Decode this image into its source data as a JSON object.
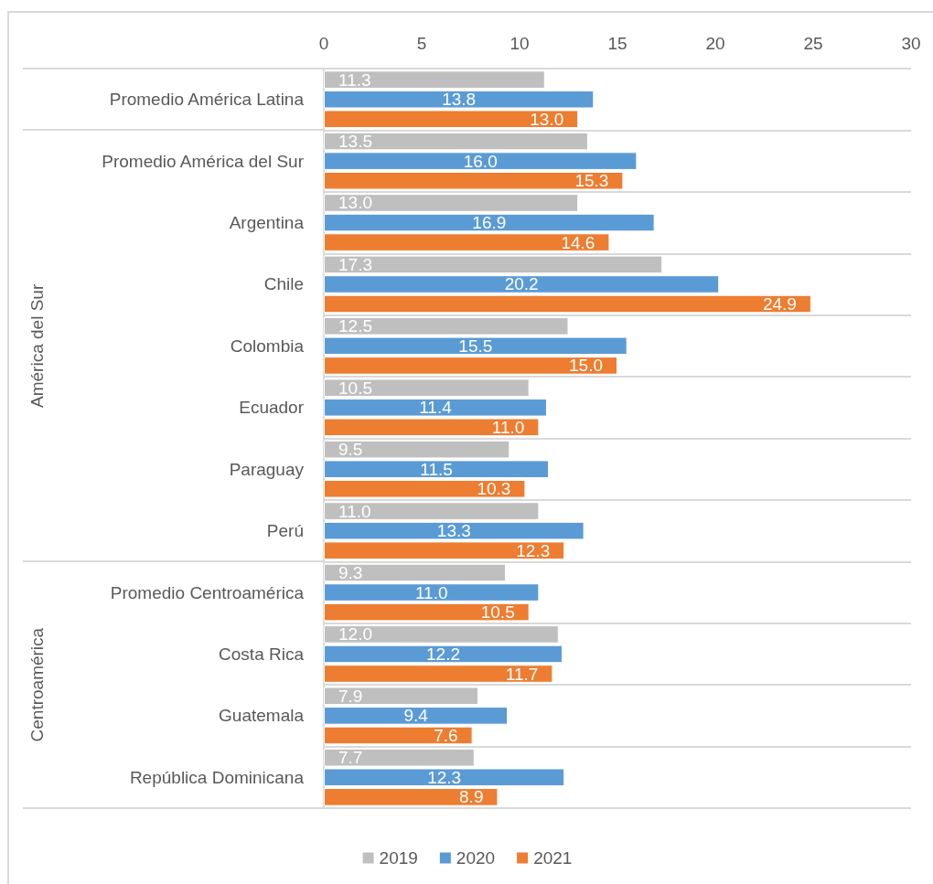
{
  "chart_data": {
    "type": "bar",
    "orientation": "horizontal",
    "categories": [
      "Promedio América Latina",
      "Promedio América del Sur",
      "Argentina",
      "Chile",
      "Colombia",
      "Ecuador",
      "Paraguay",
      "Perú",
      "Promedio Centroamérica",
      "Costa Rica",
      "Guatemala",
      "República Dominicana"
    ],
    "series": [
      {
        "name": "2019",
        "color": "#bfbfbf",
        "values": [
          11.3,
          13.5,
          13.0,
          17.3,
          12.5,
          10.5,
          9.5,
          11.0,
          9.3,
          12.0,
          7.9,
          7.7
        ],
        "value_labels": [
          "11.3",
          "13.5",
          "13.0",
          "17.3",
          "12.5",
          "10.5",
          "9.5",
          "11.0",
          "9.3",
          "12.0",
          "7.9",
          "7.7"
        ]
      },
      {
        "name": "2020",
        "color": "#5b9bd5",
        "values": [
          13.8,
          16.0,
          16.9,
          20.2,
          15.5,
          11.4,
          11.5,
          13.3,
          11.0,
          12.2,
          9.4,
          12.3
        ],
        "value_labels": [
          "13.8",
          "16.0",
          "16.9",
          "20.2",
          "15.5",
          "11.4",
          "11.5",
          "13.3",
          "11.0",
          "12.2",
          "9.4",
          "12.3"
        ]
      },
      {
        "name": "2021",
        "color": "#ed7d31",
        "values": [
          13.0,
          15.3,
          14.6,
          24.9,
          15.0,
          11.0,
          10.3,
          12.3,
          10.5,
          11.7,
          7.6,
          8.9
        ],
        "value_labels": [
          "13.0",
          "15.3",
          "14.6",
          "24.9",
          "15.0",
          "11.0",
          "10.3",
          "12.3",
          "10.5",
          "11.7",
          "7.6",
          "8.9"
        ]
      }
    ],
    "xlim": [
      0,
      30
    ],
    "xticks": [
      0,
      5,
      10,
      15,
      20,
      25,
      30
    ],
    "annotations": [
      "América del Sur",
      "Centroamérica"
    ],
    "grid": "y",
    "legend": "bottom"
  }
}
